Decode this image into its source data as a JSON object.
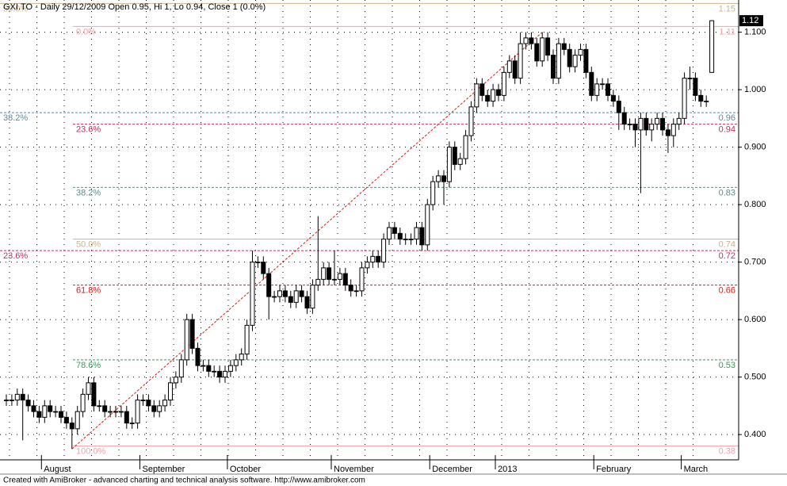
{
  "chart_data": {
    "type": "candlestick",
    "title": "GXI.TO - Daily 29/12/2009 Open 0.95, Hi 1, Lo 0.94, Close 1 (0.0%)",
    "footer": "Created with AmiBroker - advanced charting and technical analysis software. http://www.amibroker.com",
    "categories": [
      null,
      null,
      null,
      null,
      null,
      null,
      null,
      "August",
      null,
      null,
      null,
      null,
      null,
      null,
      null,
      null,
      null,
      null,
      null,
      null,
      null,
      null,
      null,
      null,
      null,
      "September",
      null,
      null,
      null,
      null,
      null,
      null,
      null,
      null,
      null,
      null,
      null,
      null,
      null,
      null,
      null,
      "October",
      null,
      null,
      null,
      null,
      null,
      null,
      null,
      null,
      null,
      null,
      null,
      null,
      null,
      null,
      null,
      null,
      null,
      null,
      "November",
      null,
      null,
      null,
      null,
      null,
      null,
      null,
      null,
      null,
      null,
      null,
      null,
      null,
      null,
      null,
      null,
      null,
      "December",
      null,
      null,
      null,
      null,
      null,
      null,
      null,
      null,
      null,
      null,
      null,
      "2013",
      null,
      null,
      null,
      null,
      null,
      null,
      null,
      null,
      null,
      null,
      null,
      null,
      null,
      null,
      null,
      null,
      null,
      "February",
      null,
      null,
      null,
      null,
      null,
      null,
      null,
      null,
      null,
      null,
      null,
      null,
      null,
      null,
      null,
      "March",
      null,
      null,
      null,
      null,
      null
    ],
    "open": [
      0.46,
      0.46,
      0.46,
      0.47,
      0.46,
      0.45,
      0.44,
      0.43,
      0.45,
      0.44,
      0.44,
      0.43,
      0.42,
      0.41,
      0.44,
      0.47,
      0.49,
      0.45,
      0.45,
      0.44,
      0.44,
      0.44,
      0.44,
      0.42,
      0.42,
      0.46,
      0.46,
      0.45,
      0.44,
      0.45,
      0.46,
      0.49,
      0.5,
      0.53,
      0.6,
      0.55,
      0.52,
      0.52,
      0.51,
      0.51,
      0.5,
      0.51,
      0.52,
      0.53,
      0.54,
      0.59,
      0.7,
      0.7,
      0.68,
      0.64,
      0.64,
      0.65,
      0.64,
      0.63,
      0.65,
      0.64,
      0.62,
      0.66,
      0.67,
      0.69,
      0.67,
      0.67,
      0.68,
      0.66,
      0.65,
      0.65,
      0.69,
      0.7,
      0.71,
      0.7,
      0.74,
      0.76,
      0.75,
      0.74,
      0.74,
      0.74,
      0.76,
      0.73,
      0.8,
      0.84,
      0.85,
      0.84,
      0.9,
      0.87,
      0.88,
      0.92,
      0.97,
      1.01,
      0.99,
      0.98,
      1,
      0.99,
      1.03,
      1.05,
      1.02,
      1.08,
      1.09,
      1.08,
      1.05,
      1.09,
      1.06,
      1.02,
      1.08,
      1.07,
      1.04,
      1.06,
      1.07,
      1.03,
      0.99,
      1.01,
      1.01,
      0.99,
      0.98,
      0.96,
      0.94,
      0.94,
      0.93,
      0.95,
      0.93,
      0.94,
      0.95,
      0.93,
      0.92,
      0.94,
      0.95,
      1.02,
      1.02,
      0.99,
      0.98,
      1.03
    ],
    "high": [
      0.47,
      0.47,
      0.48,
      0.48,
      0.47,
      0.46,
      0.45,
      0.46,
      0.46,
      0.45,
      0.45,
      0.44,
      0.43,
      0.45,
      0.48,
      0.5,
      0.5,
      0.46,
      0.46,
      0.45,
      0.45,
      0.45,
      0.45,
      0.43,
      0.47,
      0.47,
      0.47,
      0.46,
      0.46,
      0.47,
      0.5,
      0.51,
      0.54,
      0.61,
      0.61,
      0.56,
      0.53,
      0.53,
      0.52,
      0.52,
      0.52,
      0.53,
      0.54,
      0.55,
      0.6,
      0.72,
      0.71,
      0.71,
      0.69,
      0.65,
      0.66,
      0.66,
      0.65,
      0.66,
      0.66,
      0.65,
      0.67,
      0.78,
      0.7,
      0.7,
      0.72,
      0.69,
      0.69,
      0.67,
      0.66,
      0.7,
      0.71,
      0.72,
      0.72,
      0.75,
      0.77,
      0.77,
      0.76,
      0.75,
      0.75,
      0.77,
      0.77,
      0.81,
      0.85,
      0.86,
      0.86,
      0.91,
      0.91,
      0.89,
      0.93,
      0.98,
      1.02,
      1.02,
      1,
      1.01,
      1.01,
      1.04,
      1.06,
      1.06,
      1.1,
      1.1,
      1.1,
      1.09,
      1.1,
      1.1,
      1.07,
      1.09,
      1.09,
      1.08,
      1.07,
      1.08,
      1.08,
      1.04,
      1.02,
      1.02,
      1.02,
      1,
      0.99,
      0.97,
      0.95,
      0.95,
      0.96,
      0.96,
      0.95,
      0.96,
      0.96,
      0.94,
      0.95,
      0.96,
      1.03,
      1.04,
      1.03,
      1,
      0.99,
      1.12
    ],
    "low": [
      0.45,
      0.45,
      0.45,
      0.39,
      0.44,
      0.43,
      0.42,
      0.42,
      0.43,
      0.43,
      0.42,
      0.41,
      0.375,
      0.4,
      0.43,
      0.46,
      0.44,
      0.44,
      0.43,
      0.43,
      0.43,
      0.43,
      0.41,
      0.41,
      0.41,
      0.45,
      0.44,
      0.43,
      0.43,
      0.44,
      0.45,
      0.48,
      0.49,
      0.52,
      0.54,
      0.51,
      0.51,
      0.5,
      0.5,
      0.49,
      0.49,
      0.5,
      0.51,
      0.52,
      0.53,
      0.58,
      0.69,
      0.67,
      0.6,
      0.63,
      0.63,
      0.63,
      0.62,
      0.62,
      0.63,
      0.61,
      0.61,
      0.65,
      0.66,
      0.66,
      0.66,
      0.66,
      0.65,
      0.64,
      0.64,
      0.64,
      0.68,
      0.69,
      0.69,
      0.69,
      0.73,
      0.74,
      0.73,
      0.73,
      0.73,
      0.73,
      0.72,
      0.72,
      0.79,
      0.83,
      0.8,
      0.83,
      0.86,
      0.86,
      0.87,
      0.91,
      0.96,
      0.98,
      0.97,
      0.97,
      0.98,
      0.98,
      1.02,
      1.01,
      1.01,
      1.07,
      1.07,
      1.04,
      1.04,
      1.05,
      1.01,
      1.01,
      1.06,
      1.03,
      1.03,
      1.05,
      1.02,
      0.98,
      0.98,
      1,
      0.98,
      0.97,
      0.93,
      0.93,
      0.93,
      0.9,
      0.82,
      0.92,
      0.91,
      0.93,
      0.92,
      0.89,
      0.9,
      0.93,
      0.94,
      1,
      0.98,
      0.97,
      0.97,
      1.03
    ],
    "close": [
      0.46,
      0.46,
      0.47,
      0.46,
      0.45,
      0.44,
      0.43,
      0.45,
      0.44,
      0.44,
      0.43,
      0.42,
      0.41,
      0.44,
      0.47,
      0.49,
      0.45,
      0.45,
      0.44,
      0.44,
      0.44,
      0.44,
      0.42,
      0.42,
      0.46,
      0.46,
      0.45,
      0.44,
      0.45,
      0.46,
      0.49,
      0.5,
      0.53,
      0.6,
      0.55,
      0.52,
      0.52,
      0.51,
      0.51,
      0.5,
      0.51,
      0.52,
      0.53,
      0.54,
      0.59,
      0.7,
      0.7,
      0.68,
      0.64,
      0.64,
      0.65,
      0.64,
      0.63,
      0.65,
      0.64,
      0.62,
      0.66,
      0.67,
      0.69,
      0.67,
      0.67,
      0.68,
      0.66,
      0.65,
      0.65,
      0.69,
      0.7,
      0.71,
      0.7,
      0.74,
      0.76,
      0.75,
      0.74,
      0.74,
      0.74,
      0.76,
      0.73,
      0.8,
      0.84,
      0.85,
      0.84,
      0.9,
      0.87,
      0.88,
      0.92,
      0.97,
      1.01,
      0.99,
      0.98,
      1,
      0.99,
      1.03,
      1.05,
      1.02,
      1.08,
      1.09,
      1.08,
      1.05,
      1.09,
      1.06,
      1.02,
      1.08,
      1.07,
      1.04,
      1.06,
      1.07,
      1.03,
      0.99,
      1.01,
      1.01,
      0.99,
      0.98,
      0.96,
      0.94,
      0.94,
      0.93,
      0.95,
      0.93,
      0.94,
      0.95,
      0.93,
      0.92,
      0.94,
      0.95,
      1.02,
      1.02,
      0.99,
      0.98,
      0.98,
      1.12
    ],
    "up_color": "#ffffff",
    "down_color": "#000000",
    "ylim": [
      0.356,
      1.156
    ],
    "yticks": [
      {
        "value": 0.4,
        "label": "0.400"
      },
      {
        "value": 0.5,
        "label": "0.500"
      },
      {
        "value": 0.6,
        "label": "0.600"
      },
      {
        "value": 0.7,
        "label": "0.700"
      },
      {
        "value": 0.8,
        "label": "0.800"
      },
      {
        "value": 0.9,
        "label": "0.900"
      },
      {
        "value": 1.0,
        "label": "1.000"
      },
      {
        "value": 1.1,
        "label": "1.100"
      }
    ],
    "grid": true,
    "fib_levels": [
      {
        "label": "50.0%",
        "value": 1.15,
        "color": "#c8b48c"
      },
      {
        "label": "0.0%",
        "value": 1.11,
        "color": "#f0a0a8"
      },
      {
        "label": "38.2%",
        "value": 0.96,
        "color": "#5f8a9a"
      },
      {
        "label": "23.6%",
        "value": 0.94,
        "color": "#c0305a"
      },
      {
        "label": "38.2%",
        "value": 0.83,
        "color": "#5f8a8a"
      },
      {
        "label": "50.0%",
        "value": 0.74,
        "color": "#c8b48c"
      },
      {
        "label": "23.6%",
        "value": 0.72,
        "color": "#c0305a"
      },
      {
        "label": "61.8%",
        "value": 0.66,
        "color": "#e01818"
      },
      {
        "label": "78.6%",
        "value": 0.53,
        "color": "#3a9a5a"
      },
      {
        "label": "100.0%",
        "value": 0.38,
        "color": "#f0a0a8"
      }
    ]
  }
}
